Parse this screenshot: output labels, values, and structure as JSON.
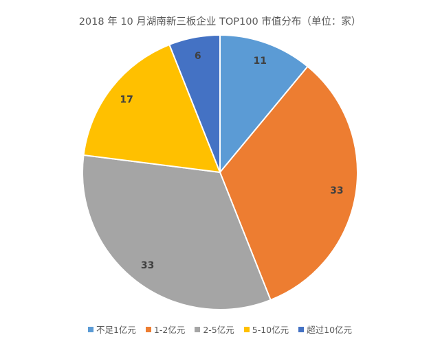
{
  "chart_data": {
    "type": "pie",
    "title": "2018 年 10 月湖南新三板企业 TOP100 市值分布（单位：家）",
    "categories": [
      "不足1亿元",
      "1-2亿元",
      "2-5亿元",
      "5-10亿元",
      "超过10亿元"
    ],
    "values": [
      11,
      33,
      33,
      17,
      6
    ],
    "colors": [
      "#5b9bd5",
      "#ed7d31",
      "#a5a5a5",
      "#ffc000",
      "#4472c4"
    ],
    "start_angle_deg": 0,
    "direction": "clockwise",
    "legend_position": "bottom"
  }
}
